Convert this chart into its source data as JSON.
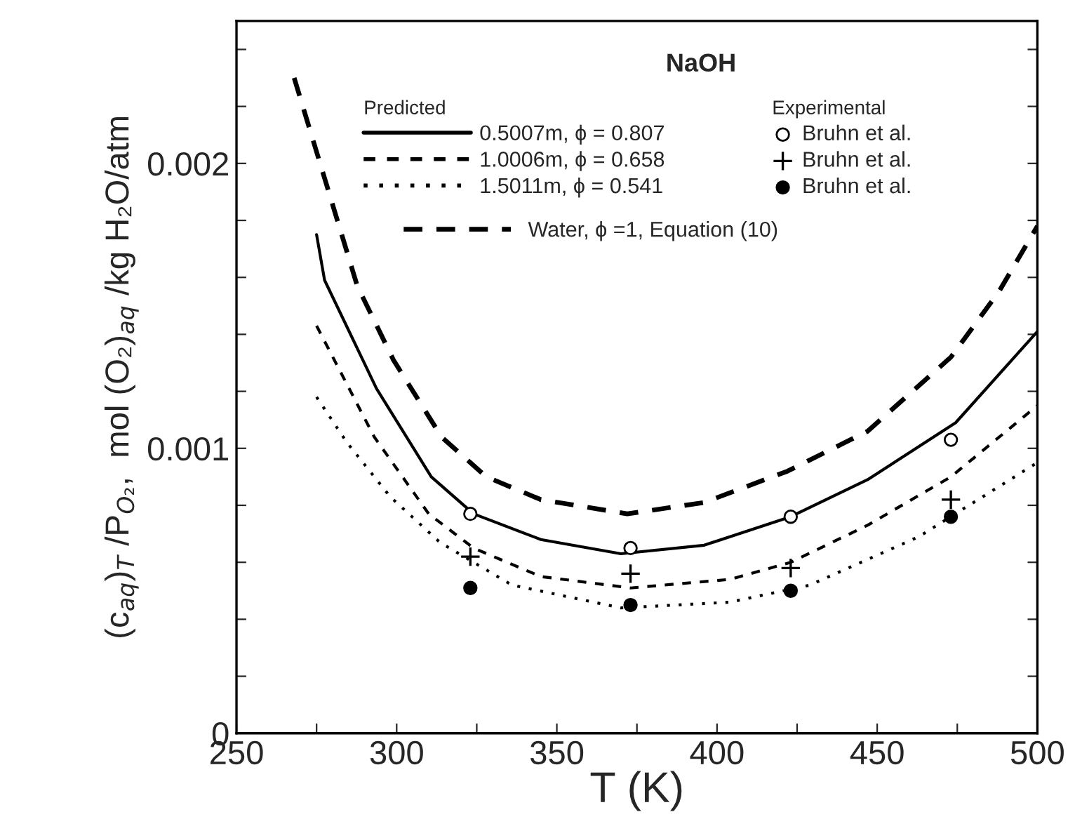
{
  "chart_data": {
    "type": "line",
    "title": "NaOH",
    "xlabel": "T (K)",
    "ylabel": "(c$_{aq}$)$_{T}$ /P$_{O₂}$,  mol (O₂)$_{aq}$ /kg H₂O/atm",
    "legend_title": [
      "Predicted",
      "Experimental"
    ],
    "series": [
      {
        "name": "0.5007m, ϕ = 0.807",
        "line_style": "solid",
        "color": "#000000",
        "x": [
          275,
          277.5,
          293.7,
          310.8,
          324,
          345,
          370,
          396,
          423,
          447,
          474.5,
          500
        ],
        "values": [
          0.00175,
          0.00159,
          0.00121,
          0.0009,
          0.00077,
          0.00068,
          0.00063,
          0.00066,
          0.00076,
          0.00089,
          0.00109,
          0.00141
        ]
      },
      {
        "name": "1.0006m, ϕ = 0.658",
        "line_style": "dashed",
        "color": "#000000",
        "x": [
          275,
          293,
          310,
          324,
          345,
          373,
          404,
          423,
          447,
          473,
          500
        ],
        "values": [
          0.00143,
          0.00104,
          0.00077,
          0.00065,
          0.00055,
          0.00051,
          0.00054,
          0.0006,
          0.00073,
          0.0009,
          0.00115
        ]
      },
      {
        "name": "1.5011m, ϕ = 0.541",
        "line_style": "dotted",
        "color": "#000000",
        "x": [
          275,
          284.5,
          298,
          313.5,
          336,
          370,
          404,
          429,
          463,
          500
        ],
        "values": [
          0.00118,
          0.00102,
          0.00083,
          0.00067,
          0.00052,
          0.00044,
          0.00046,
          0.00052,
          0.00069,
          0.00095
        ]
      },
      {
        "name": "Bruhn et al.",
        "type": "scatter",
        "marker": "circle",
        "color": "#ffffff",
        "x": [
          323,
          373,
          423,
          473
        ],
        "values": [
          0.00077,
          0.00065,
          0.00076,
          0.00103
        ]
      },
      {
        "name": "Bruhn et al.",
        "type": "scatter",
        "marker": "cross",
        "color": "#000000",
        "x": [
          323,
          373,
          423,
          473
        ],
        "values": [
          0.00062,
          0.00056,
          0.00058,
          0.00082
        ]
      },
      {
        "name": "Bruhn et al.",
        "type": "scatter",
        "marker": "circle",
        "color": "#000000",
        "x": [
          323,
          373,
          423,
          473
        ],
        "values": [
          0.00051,
          0.00045,
          0.0005,
          0.00076
        ]
      },
      {
        "name": "Water, ϕ =1, Equation (10)",
        "line_style": "dashed",
        "color": "#000000",
        "x": [
          268,
          287.7,
          299,
          314,
          328,
          345,
          372,
          396,
          422,
          447,
          473,
          488,
          500
        ],
        "values": [
          0.0023,
          0.00157,
          0.00131,
          0.00104,
          0.0009,
          0.00082,
          0.00077,
          0.00081,
          0.00092,
          0.00106,
          0.00132,
          0.00155,
          0.00178
        ]
      }
    ],
    "xlim": [
      250,
      500
    ],
    "xticks": [
      250,
      {
        "value": 275,
        "label": null
      },
      300,
      {
        "value": 325,
        "label": null
      },
      350,
      {
        "value": 375,
        "label": null
      },
      400,
      {
        "value": 425,
        "label": null
      },
      450,
      {
        "value": 475,
        "label": null
      },
      500
    ],
    "ylim": [
      0,
      0.0025
    ],
    "yticks": [
      0,
      {
        "value": 0.0002,
        "label": null
      },
      {
        "value": 0.0004,
        "label": null
      },
      {
        "value": 0.0006,
        "label": null
      },
      {
        "value": 0.0008,
        "label": null
      },
      0.001,
      {
        "value": 0.0012,
        "label": null
      },
      {
        "value": 0.0014,
        "label": null
      },
      {
        "value": 0.0016,
        "label": null
      },
      {
        "value": 0.0018,
        "label": null
      },
      0.002,
      {
        "value": 0.0022,
        "label": null
      },
      {
        "value": 0.0024,
        "label": null
      }
    ],
    "grid": false,
    "legend": "top"
  }
}
